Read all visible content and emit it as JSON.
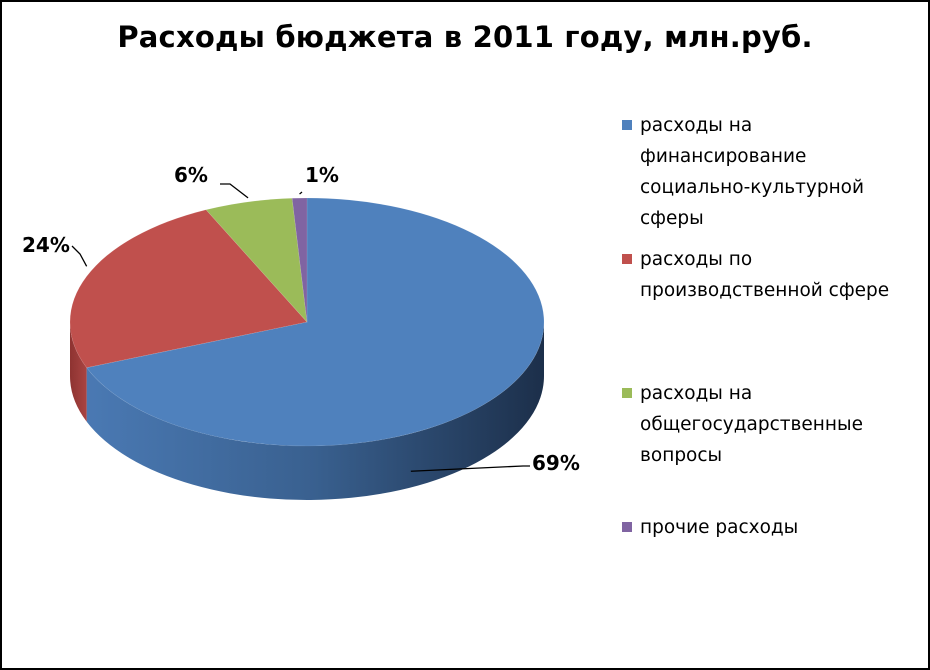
{
  "chart_data": {
    "type": "pie",
    "title": "Расходы бюджета в 2011 году, млн.руб.",
    "categories": [
      "расходы на финансирование социально-культурной сферы",
      "расходы по производственной сфере",
      "расходы на общегосударственные вопросы",
      "прочие расходы"
    ],
    "values": [
      69,
      24,
      6,
      1
    ],
    "data_labels": [
      "69%",
      "24%",
      "6%",
      "1%"
    ],
    "colors": [
      "#4F81BD",
      "#C0504D",
      "#9BBB59",
      "#8064A2"
    ],
    "style": "3d",
    "legend_position": "right"
  }
}
